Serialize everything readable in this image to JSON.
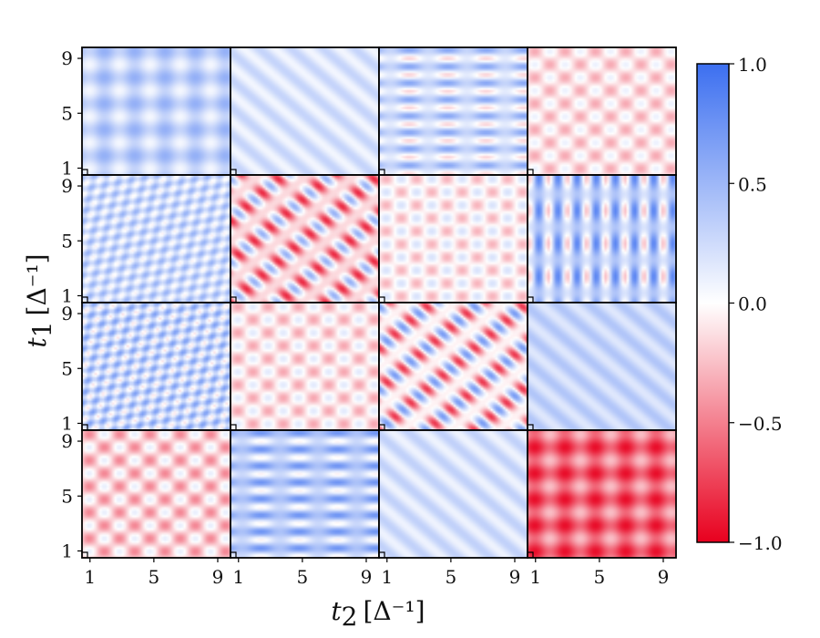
{
  "chart_data": {
    "type": "heatmap",
    "layout": "4x4 grid of correlation maps with shared colorbar",
    "xlabel": {
      "var": "t",
      "sub": "2",
      "unit": "[Δ⁻¹]"
    },
    "ylabel": {
      "var": "t",
      "sub": "1",
      "unit": "[Δ⁻¹]"
    },
    "xlim": [
      0.5,
      9.8
    ],
    "ylim": [
      0.5,
      9.8
    ],
    "xticks": [
      "1",
      "5",
      "9"
    ],
    "yticks": [
      "1",
      "5",
      "9"
    ],
    "colorbar": {
      "range": [
        -1.0,
        1.0
      ],
      "ticks": [
        "1.0",
        "0.5",
        "0.0",
        "−0.5",
        "−1.0"
      ],
      "colormap": [
        "#e8001e",
        "#ffffff",
        "#3c6ff0"
      ]
    },
    "panels": [
      {
        "row": 1,
        "col": 1,
        "mean": 0.3,
        "amp": 0.25,
        "pattern": "grid",
        "fx": 1.9,
        "fy": 1.9
      },
      {
        "row": 1,
        "col": 2,
        "mean": 0.18,
        "amp": 0.12,
        "pattern": "diag",
        "fx": 2.0,
        "fy": 2.0
      },
      {
        "row": 1,
        "col": 3,
        "mean": 0.22,
        "amp": 0.4,
        "pattern": "hbands",
        "fx": 1.2,
        "fy": 2.6
      },
      {
        "row": 1,
        "col": 4,
        "mean": -0.12,
        "amp": 0.22,
        "pattern": "lattice",
        "fx": 1.9,
        "fy": 1.9
      },
      {
        "row": 2,
        "col": 1,
        "mean": 0.25,
        "amp": 0.3,
        "pattern": "diagdots",
        "fx": 2.0,
        "fy": 2.0
      },
      {
        "row": 2,
        "col": 2,
        "mean": -0.15,
        "amp": 0.7,
        "pattern": "eyes",
        "fx": 2.0,
        "fy": 2.0
      },
      {
        "row": 2,
        "col": 3,
        "mean": -0.05,
        "amp": 0.25,
        "pattern": "lattice",
        "fx": 1.9,
        "fy": 1.9
      },
      {
        "row": 2,
        "col": 4,
        "mean": 0.3,
        "amp": 0.55,
        "pattern": "vbands",
        "fx": 2.6,
        "fy": 1.2
      },
      {
        "row": 3,
        "col": 1,
        "mean": 0.28,
        "amp": 0.4,
        "pattern": "diagdots",
        "fx": 2.0,
        "fy": 2.0
      },
      {
        "row": 3,
        "col": 2,
        "mean": -0.1,
        "amp": 0.25,
        "pattern": "lattice",
        "fx": 1.9,
        "fy": 1.9
      },
      {
        "row": 3,
        "col": 3,
        "mean": -0.05,
        "amp": 0.75,
        "pattern": "eyes",
        "fx": 2.0,
        "fy": 2.0
      },
      {
        "row": 3,
        "col": 4,
        "mean": 0.28,
        "amp": 0.12,
        "pattern": "diag",
        "fx": 2.0,
        "fy": 2.0
      },
      {
        "row": 4,
        "col": 1,
        "mean": -0.18,
        "amp": 0.3,
        "pattern": "lattice",
        "fx": 1.9,
        "fy": 1.9
      },
      {
        "row": 4,
        "col": 2,
        "mean": 0.35,
        "amp": 0.4,
        "pattern": "hbands",
        "fx": 1.2,
        "fy": 2.6
      },
      {
        "row": 4,
        "col": 3,
        "mean": 0.2,
        "amp": 0.12,
        "pattern": "diag",
        "fx": 2.0,
        "fy": 2.0
      },
      {
        "row": 4,
        "col": 4,
        "mean": -0.6,
        "amp": 0.35,
        "pattern": "grid",
        "fx": 1.9,
        "fy": 1.9
      }
    ]
  }
}
